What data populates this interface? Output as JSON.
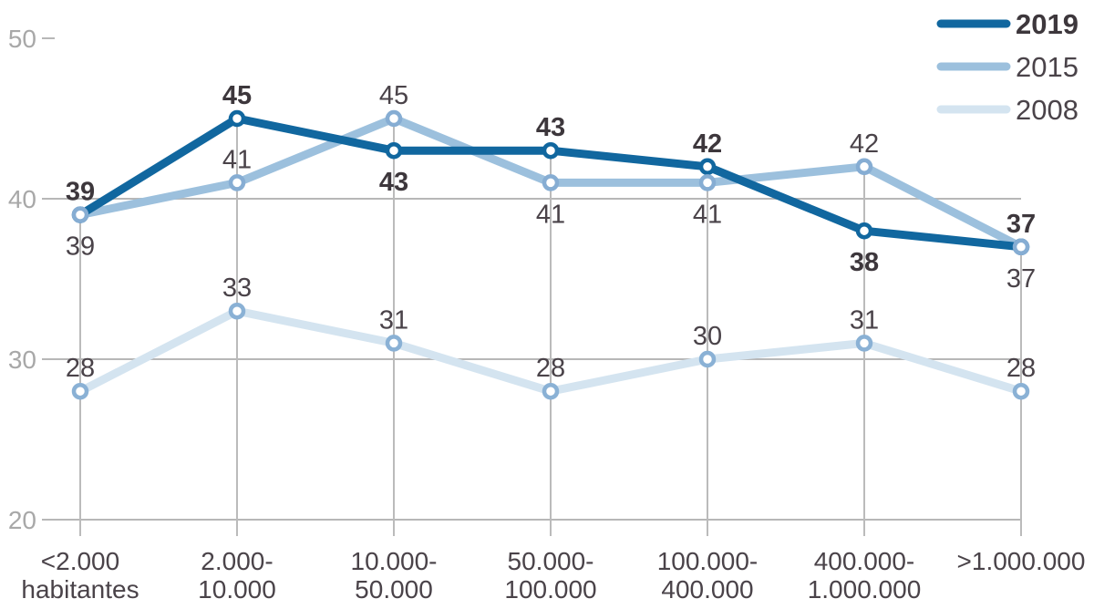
{
  "chart_data": {
    "type": "line",
    "title": "",
    "xlabel": "",
    "ylabel": "",
    "categories": [
      [
        "<2.000",
        "habitantes"
      ],
      [
        "2.000-",
        "10.000"
      ],
      [
        "10.000-",
        "50.000"
      ],
      [
        "50.000-",
        "100.000"
      ],
      [
        "100.000-",
        "400.000"
      ],
      [
        "400.000-",
        "1.000.000"
      ],
      [
        ">1.000.000"
      ]
    ],
    "series": [
      {
        "name": "2019",
        "values": [
          39,
          45,
          43,
          43,
          42,
          38,
          37
        ],
        "color": "#11679f",
        "marker_stroke": "#11679f",
        "bold_labels": true,
        "label_side": [
          "above",
          "above",
          "below",
          "above",
          "above",
          "below",
          "above"
        ]
      },
      {
        "name": "2015",
        "values": [
          39,
          41,
          45,
          41,
          41,
          42,
          37
        ],
        "color": "#9cc0dd",
        "marker_stroke": "#86add3",
        "bold_labels": false,
        "label_side": [
          "below",
          "above",
          "above",
          "below",
          "below",
          "above",
          "below"
        ]
      },
      {
        "name": "2008",
        "values": [
          28,
          33,
          31,
          28,
          30,
          31,
          28
        ],
        "color": "#d4e4f0",
        "marker_stroke": "#8ab1d5",
        "bold_labels": false,
        "label_side": [
          "above",
          "above",
          "above",
          "above",
          "above",
          "above",
          "above"
        ]
      }
    ],
    "y_axis": {
      "min": 20,
      "max": 50,
      "ticks": [
        20,
        30,
        40,
        50
      ],
      "full_gridline_ticks": [
        20,
        30,
        40
      ],
      "tick_only": [
        50
      ]
    },
    "legend": {
      "position": "top-right",
      "entries": [
        "2019",
        "2015",
        "2008"
      ]
    },
    "grid": true
  },
  "colors": {
    "grid_line": "#b7b7b7",
    "drop_line": "#bbbbbb",
    "axis_tick_text": "#a8a8a8",
    "label_dark_bold": "#3d373c",
    "label_dark_regular": "#4a4349",
    "marker_fill": "#ffffff",
    "background": "#ffffff"
  }
}
